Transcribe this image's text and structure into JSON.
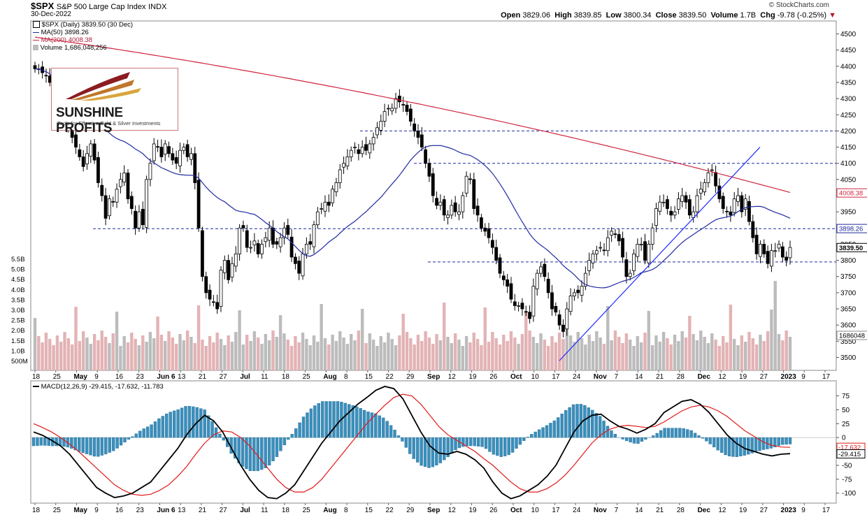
{
  "header": {
    "symbol": "$SPX",
    "name": "S&P 500 Large Cap Index",
    "exchange": "INDX",
    "date": "30-Dec-2022",
    "brand": "© StockCharts.com",
    "quote": {
      "open_label": "Open",
      "open": "3829.06",
      "high_label": "High",
      "high": "3839.85",
      "low_label": "Low",
      "low": "3800.34",
      "close_label": "Close",
      "close": "3839.50",
      "volume_label": "Volume",
      "volume": "1.7B",
      "chg_label": "Chg",
      "chg": "-9.78 (-0.25%)"
    }
  },
  "legend": {
    "price": "$SPX (Daily) 3839.50 (30 Dec)",
    "ma50": "MA(50) 3898.26",
    "ma200": "MA(200) 4008.38",
    "volume": "Volume 1,686,048,256",
    "macd": "MACD(12,26,9) -29.415, -17.632, -11.783"
  },
  "logo": {
    "title": "SUNSHINE PROFITS",
    "subtitle": "Tools for Effective Gold & Silver Investments"
  },
  "colors": {
    "up": "#000000",
    "down": "#000000",
    "ma50": "#1f2aa0",
    "ma200": "#d0243f",
    "vol_up": "#bcbcbc",
    "vol_down": "#e3b3b5",
    "macd_line": "#000000",
    "signal_line": "#e01919",
    "histogram": "#3a8fbd",
    "trendline": "#1f2aff",
    "level_line": "#1f2aa0"
  },
  "chart_data": [
    {
      "type": "candlestick",
      "title": "$SPX (Daily) 3839.50 (30 Dec)",
      "x_tick_labels": [
        "18",
        "25",
        "May",
        "9",
        "16",
        "23",
        "Jun 6",
        "13",
        "21",
        "27",
        "Jul",
        "11",
        "18",
        "25",
        "Aug",
        "8",
        "15",
        "22",
        "29",
        "Sep",
        "12",
        "19",
        "26",
        "Oct",
        "10",
        "17",
        "24",
        "Nov",
        "7",
        "14",
        "21",
        "28",
        "Dec",
        "12",
        "19",
        "27",
        "2023",
        "9",
        "17"
      ],
      "price_axis": {
        "ylim": [
          3460,
          4540
        ],
        "ticks": [
          4500,
          4450,
          4400,
          4350,
          4300,
          4250,
          4200,
          4150,
          4100,
          4050,
          3950,
          3900,
          3850,
          3800,
          3750,
          3700,
          3650,
          3600,
          3550,
          3500
        ],
        "tick_labels": [
          "4500",
          "4450",
          "4400",
          "4350",
          "4300",
          "4250",
          "4200",
          "4150",
          "4100",
          "4050",
          "3950",
          "3900",
          "3850",
          "3800",
          "3750",
          "3700",
          "3650",
          "3600",
          "3550",
          "3500"
        ],
        "labeled_values": [
          "4008.38",
          "3898.26",
          "3839.50",
          "1686048"
        ]
      },
      "volume_axis": {
        "tick_labels": [
          "5.5B",
          "5.0B",
          "4.5B",
          "4.0B",
          "3.5B",
          "3.0B",
          "2.5B",
          "2.0B",
          "1.5B",
          "1.0B",
          "500M"
        ]
      },
      "horizontal_levels": [
        4200,
        4100,
        3898,
        3795
      ],
      "trendline": {
        "from": {
          "x": "Oct 13",
          "y": 3490
        },
        "to": {
          "x": "Dec 19",
          "y": 4150
        }
      },
      "close_series": [
        4392,
        4390,
        4380,
        4370,
        4350,
        4300,
        4290,
        4260,
        4220,
        4210,
        4180,
        4150,
        4120,
        4090,
        4130,
        4160,
        4110,
        4040,
        4000,
        3930,
        3990,
        3980,
        4020,
        4050,
        4070,
        3990,
        3960,
        3900,
        3950,
        3910,
        4050,
        4100,
        4160,
        4150,
        4120,
        4160,
        4130,
        4110,
        4100,
        4140,
        4150,
        4120,
        4130,
        4040,
        3900,
        3750,
        3700,
        3680,
        3670,
        3650,
        3770,
        3800,
        3740,
        3790,
        3820,
        3900,
        3900,
        3840,
        3840,
        3860,
        3820,
        3850,
        3870,
        3900,
        3850,
        3850,
        3870,
        3900,
        3880,
        3810,
        3790,
        3760,
        3820,
        3850,
        3850,
        3910,
        3950,
        3960,
        3980,
        3970,
        4020,
        4040,
        4080,
        4100,
        4120,
        4140,
        4150,
        4130,
        4150,
        4140,
        4160,
        4180,
        4210,
        4230,
        4260,
        4270,
        4270,
        4300,
        4290,
        4280,
        4260,
        4230,
        4200,
        4180,
        4150,
        4100,
        4060,
        4000,
        3970,
        3980,
        3940,
        3940,
        3970,
        3950,
        3950,
        4000,
        4060,
        4050,
        3960,
        3940,
        3900,
        3890,
        3870,
        3840,
        3800,
        3760,
        3740,
        3720,
        3680,
        3660,
        3660,
        3650,
        3640,
        3620,
        3720,
        3760,
        3780,
        3750,
        3700,
        3650,
        3640,
        3600,
        3580,
        3650,
        3690,
        3700,
        3700,
        3720,
        3760,
        3800,
        3820,
        3830,
        3840,
        3830,
        3870,
        3890,
        3880,
        3860,
        3810,
        3750,
        3760,
        3820,
        3850,
        3850,
        3800,
        3850,
        3900,
        3960,
        3980,
        3980,
        3960,
        3940,
        3950,
        3990,
        4000,
        3980,
        3940,
        3950,
        4000,
        4020,
        4040,
        4070,
        4080,
        4030,
        3990,
        3960,
        3950,
        3940,
        3990,
        4000,
        3950,
        3990,
        3920,
        3870,
        3820,
        3850,
        3820,
        3790,
        3830,
        3830,
        3850,
        3810,
        3800,
        3840
      ]
    },
    {
      "type": "macd",
      "title": "MACD(12,26,9) -29.415, -17.632, -11.783",
      "ylim": [
        -118,
        102
      ],
      "ticks": [
        75,
        50,
        25,
        0,
        -25,
        -50,
        -75,
        -100
      ],
      "tick_labels": [
        "75",
        "50",
        "25",
        "0",
        "-25",
        "-50",
        "-75",
        "-100"
      ],
      "last_values": {
        "macd": -29.415,
        "signal": -17.632,
        "histogram": -11.783
      },
      "value_labels": [
        "-17.632",
        "-29.415"
      ],
      "macd_line": [
        10,
        4,
        -5,
        -15,
        -30,
        -50,
        -70,
        -90,
        -100,
        -108,
        -105,
        -100,
        -90,
        -80,
        -60,
        -40,
        -20,
        5,
        25,
        40,
        30,
        10,
        -20,
        -50,
        -75,
        -95,
        -108,
        -110,
        -100,
        -85,
        -60,
        -35,
        -10,
        10,
        30,
        45,
        60,
        72,
        85,
        92,
        88,
        70,
        40,
        10,
        -15,
        -28,
        -30,
        -25,
        -30,
        -40,
        -55,
        -80,
        -100,
        -110,
        -105,
        -95,
        -85,
        -70,
        -50,
        -20,
        10,
        30,
        40,
        42,
        30,
        20,
        15,
        8,
        15,
        25,
        45,
        55,
        65,
        68,
        60,
        45,
        25,
        5,
        -10,
        -20,
        -25,
        -30,
        -33,
        -30,
        -29
      ],
      "signal_line": [
        25,
        18,
        10,
        0,
        -12,
        -25,
        -40,
        -55,
        -70,
        -85,
        -95,
        -102,
        -104,
        -102,
        -95,
        -85,
        -70,
        -52,
        -30,
        -10,
        5,
        12,
        10,
        0,
        -15,
        -35,
        -55,
        -75,
        -90,
        -98,
        -98,
        -90,
        -75,
        -55,
        -35,
        -15,
        5,
        25,
        42,
        58,
        72,
        78,
        75,
        60,
        40,
        20,
        5,
        -5,
        -15,
        -25,
        -38,
        -50,
        -65,
        -80,
        -92,
        -98,
        -98,
        -92,
        -82,
        -68,
        -50,
        -30,
        -10,
        5,
        15,
        20,
        22,
        20,
        18,
        20,
        28,
        38,
        48,
        55,
        58,
        55,
        48,
        38,
        25,
        12,
        2,
        -8,
        -14,
        -17,
        -17.632
      ],
      "histogram": [
        -15,
        -14,
        -15,
        -15,
        -18,
        -25,
        -30,
        -35,
        -30,
        -23,
        -10,
        2,
        14,
        22,
        35,
        45,
        50,
        57,
        55,
        50,
        25,
        -2,
        -30,
        -50,
        -60,
        -60,
        -53,
        -35,
        -10,
        13,
        38,
        55,
        65,
        65,
        65,
        60,
        55,
        47,
        43,
        34,
        16,
        -8,
        -35,
        -50,
        -55,
        -48,
        -35,
        -20,
        -15,
        -15,
        -17,
        -30,
        -35,
        -30,
        -13,
        3,
        13,
        22,
        32,
        48,
        60,
        60,
        50,
        37,
        15,
        0,
        -7,
        -12,
        -3,
        5,
        17,
        17,
        17,
        13,
        2,
        -10,
        -23,
        -33,
        -35,
        -32,
        -27,
        -22,
        -19,
        -13,
        -11.783
      ]
    }
  ]
}
